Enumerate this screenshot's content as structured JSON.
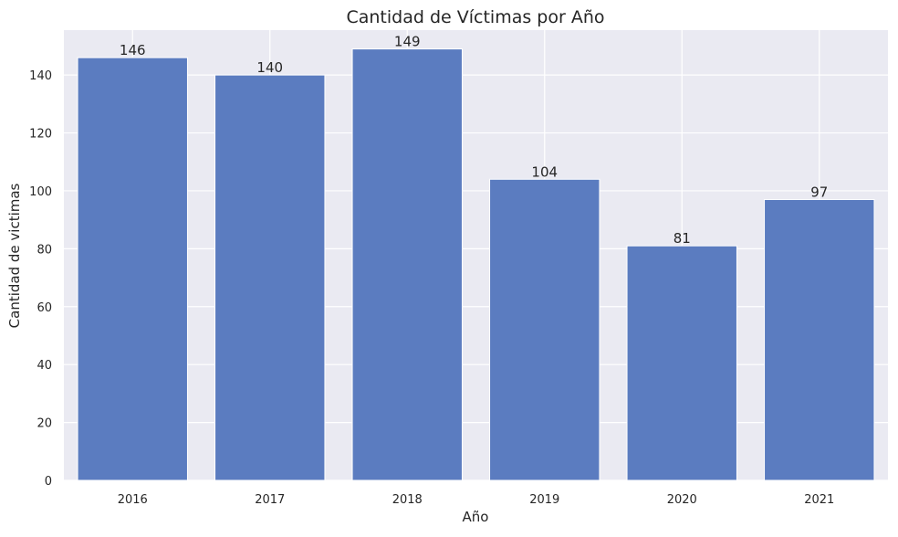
{
  "chart_data": {
    "type": "bar",
    "title": "Cantidad de Víctimas por Año",
    "xlabel": "Año",
    "ylabel": "Cantidad de victimas",
    "categories": [
      "2016",
      "2017",
      "2018",
      "2019",
      "2020",
      "2021"
    ],
    "values": [
      146,
      140,
      149,
      104,
      81,
      97
    ],
    "data_labels": [
      "146",
      "140",
      "149",
      "104",
      "81",
      "97"
    ],
    "ylim": [
      0,
      155.5
    ],
    "yticks": [
      0,
      20,
      40,
      60,
      80,
      100,
      120,
      140
    ],
    "grid": true,
    "legend": "none",
    "colors": {
      "bar": "#5b7cc0",
      "plot_background": "#eaeaf2",
      "grid": "#ffffff",
      "text": "#262626"
    }
  }
}
